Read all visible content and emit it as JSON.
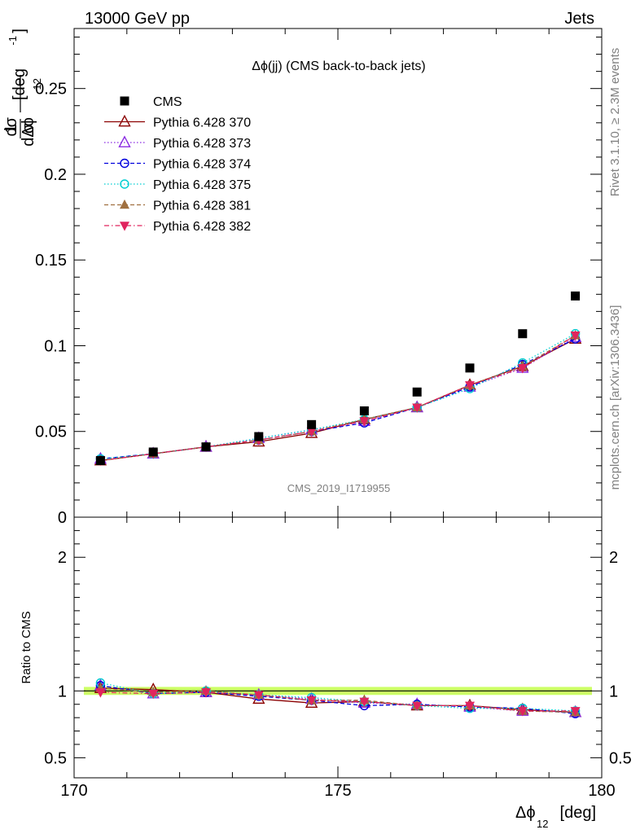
{
  "header": {
    "left": "13000 GeV pp",
    "right": "Jets"
  },
  "side_labels": {
    "rivet": "Rivet 3.1.10, ≥ 2.3M events",
    "mcplots": "mcplots.cern.ch [arXiv:1306.3436]"
  },
  "chart_data": [
    {
      "type": "scatter",
      "title": "Δϕ(jj) (CMS back-to-back jets)",
      "watermark": "CMS_2019_I1719955",
      "ylabel": "1/σ dσ/dΔϕ_12 [deg^-1]",
      "ylabel_parts": {
        "frac_num": "1",
        "frac_den": "σ",
        "frac2_num": "dσ",
        "frac2_den": "dΔϕ",
        "sub": "12",
        "unit": "[deg",
        "exp": "-1",
        "unit_close": "]"
      },
      "xlim": [
        170,
        180
      ],
      "ylim": [
        0,
        0.285
      ],
      "yticks": [
        {
          "v": 0.05,
          "label": "0.05"
        },
        {
          "v": 0.1,
          "label": "0.1"
        },
        {
          "v": 0.15,
          "label": "0.15"
        },
        {
          "v": 0.2,
          "label": "0.2"
        },
        {
          "v": 0.25,
          "label": "0.25"
        }
      ],
      "y_zero_label": "0",
      "x": [
        170.5,
        171.5,
        172.5,
        173.5,
        174.5,
        175.5,
        176.5,
        177.5,
        178.5,
        179.5
      ],
      "series": [
        {
          "name": "CMS",
          "color": "#000000",
          "marker": "square",
          "line": "none",
          "values": [
            0.033,
            0.038,
            0.041,
            0.047,
            0.054,
            0.062,
            0.073,
            0.087,
            0.107,
            0.129
          ]
        },
        {
          "name": "Pythia 6.428 370",
          "color": "#8b0000",
          "marker": "triangle-open",
          "line": "solid",
          "values": [
            0.033,
            0.037,
            0.041,
            0.044,
            0.049,
            0.057,
            0.064,
            0.077,
            0.088,
            0.104
          ]
        },
        {
          "name": "Pythia 6.428 373",
          "color": "#8a2be2",
          "marker": "triangle-open",
          "line": "dotted",
          "values": [
            0.034,
            0.037,
            0.041,
            0.046,
            0.051,
            0.056,
            0.064,
            0.076,
            0.087,
            0.105
          ]
        },
        {
          "name": "Pythia 6.428 374",
          "color": "#0000dd",
          "marker": "circle-open",
          "line": "dashed",
          "values": [
            0.034,
            0.037,
            0.041,
            0.045,
            0.05,
            0.055,
            0.064,
            0.076,
            0.089,
            0.104
          ]
        },
        {
          "name": "Pythia 6.428 375",
          "color": "#00ced1",
          "marker": "circle-open",
          "line": "dotted",
          "values": [
            0.034,
            0.037,
            0.041,
            0.046,
            0.051,
            0.057,
            0.064,
            0.075,
            0.09,
            0.107
          ]
        },
        {
          "name": "Pythia 6.428 381",
          "color": "#a07040",
          "marker": "triangle-filled",
          "line": "dashed",
          "values": [
            0.033,
            0.037,
            0.041,
            0.045,
            0.05,
            0.057,
            0.064,
            0.077,
            0.088,
            0.106
          ]
        },
        {
          "name": "Pythia 6.428 382",
          "color": "#e0245e",
          "marker": "triangle-down-filled",
          "line": "dashdot",
          "values": [
            0.033,
            0.037,
            0.041,
            0.045,
            0.05,
            0.056,
            0.064,
            0.077,
            0.087,
            0.106
          ]
        }
      ]
    },
    {
      "type": "scatter",
      "ylabel": "Ratio to CMS",
      "xlabel": "Δϕ_12 [deg]",
      "xlabel_parts": {
        "main": "Δϕ",
        "sub": "12",
        "unit": " [deg]"
      },
      "xlim": [
        170,
        180
      ],
      "ylim": [
        0.35,
        2.3
      ],
      "xticks": [
        {
          "v": 170,
          "label": "170"
        },
        {
          "v": 175,
          "label": "175"
        },
        {
          "v": 180,
          "label": "180"
        }
      ],
      "yticks": [
        {
          "v": 0.5,
          "label": "0.5"
        },
        {
          "v": 1,
          "label": "1"
        },
        {
          "v": 2,
          "label": "2"
        }
      ],
      "band": {
        "low": 0.97,
        "high": 1.03,
        "color": "#ccff66"
      },
      "x": [
        170.5,
        171.5,
        172.5,
        173.5,
        174.5,
        175.5,
        176.5,
        177.5,
        178.5,
        179.5
      ],
      "series": [
        {
          "name": "Pythia 6.428 370",
          "values": [
            1.02,
            1.01,
            0.99,
            0.94,
            0.91,
            0.92,
            0.89,
            0.89,
            0.86,
            0.84
          ]
        },
        {
          "name": "Pythia 6.428 373",
          "values": [
            1.04,
            0.98,
            0.99,
            0.97,
            0.94,
            0.91,
            0.9,
            0.88,
            0.85,
            0.84
          ]
        },
        {
          "name": "Pythia 6.428 374",
          "values": [
            1.04,
            0.98,
            0.99,
            0.96,
            0.93,
            0.89,
            0.9,
            0.88,
            0.87,
            0.83
          ]
        },
        {
          "name": "Pythia 6.428 375",
          "values": [
            1.06,
            0.98,
            1.0,
            0.97,
            0.95,
            0.92,
            0.89,
            0.87,
            0.87,
            0.85
          ]
        },
        {
          "name": "Pythia 6.428 381",
          "values": [
            1.02,
            0.99,
            1.0,
            0.97,
            0.93,
            0.93,
            0.89,
            0.89,
            0.85,
            0.84
          ]
        },
        {
          "name": "Pythia 6.428 382",
          "values": [
            0.99,
            0.98,
            0.99,
            0.97,
            0.93,
            0.92,
            0.89,
            0.89,
            0.85,
            0.85
          ]
        }
      ]
    }
  ]
}
